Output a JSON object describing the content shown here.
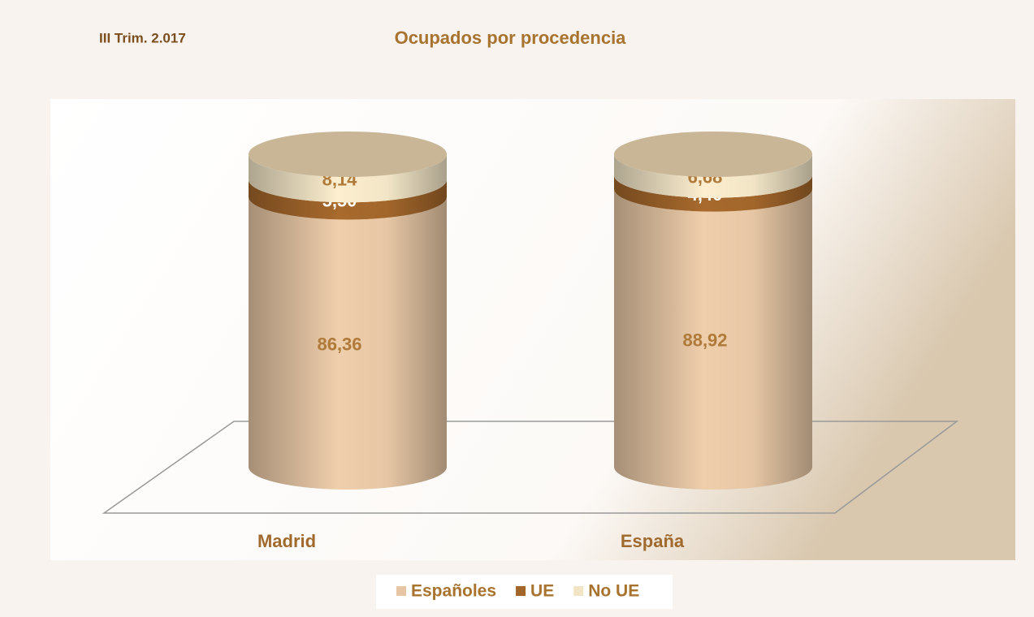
{
  "chart_data": {
    "type": "stacked-cylinder",
    "title": "Ocupados por procedencia",
    "subtitle": "III Trim. 2.017",
    "categories": [
      "Madrid",
      "España"
    ],
    "series": [
      {
        "name": "Españoles",
        "color": "#e6c6a4",
        "values": [
          86.36,
          88.92
        ],
        "value_labels": [
          "86,36",
          "88,92"
        ],
        "label_color": "#b07a3a"
      },
      {
        "name": "UE",
        "color": "#a2662b",
        "values": [
          5.5,
          4.4
        ],
        "value_labels": [
          "5,50",
          "4,40"
        ],
        "label_color": "#ffffff"
      },
      {
        "name": "No UE",
        "color": "#f2e5c6",
        "values": [
          8.14,
          6.68
        ],
        "value_labels": [
          "8,14",
          "6,68"
        ],
        "label_color": "#b07a3a"
      }
    ],
    "legend": "bottom"
  }
}
